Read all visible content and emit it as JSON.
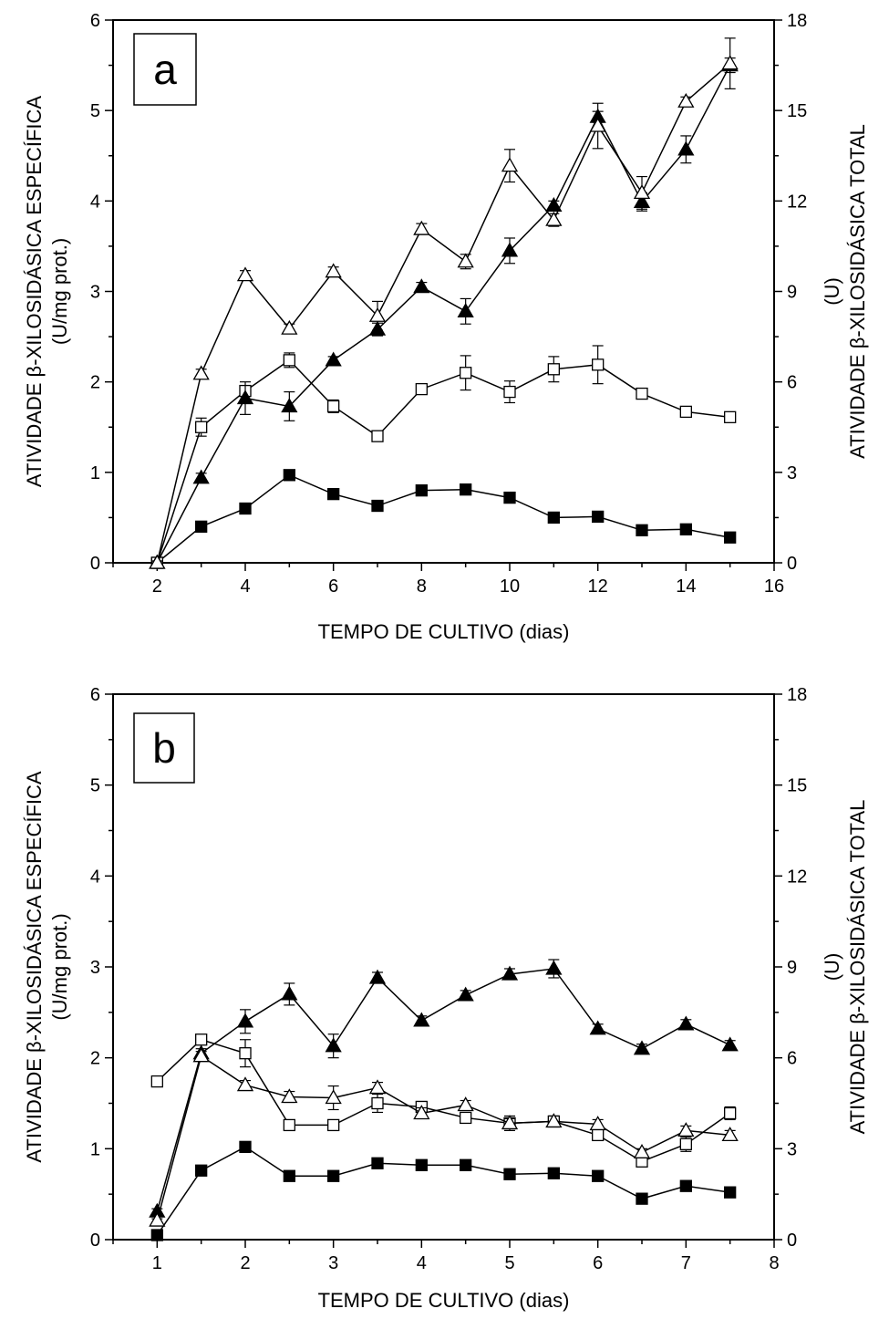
{
  "chart_data": [
    {
      "type": "line",
      "panel_label": "a",
      "xlabel": "TEMPO DE CULTIVO (dias)",
      "ylabel": [
        "ATIVIDADE β-XILOSIDÁSICA ESPECÍFICA",
        "(U/mg prot.)"
      ],
      "y2label": [
        "ATIVIDADE β-XILOSIDÁSICA TOTAL",
        "(U)"
      ],
      "xlim": [
        1,
        16
      ],
      "ylim": [
        0,
        6
      ],
      "y2lim": [
        0,
        18
      ],
      "xticks": [
        2,
        4,
        6,
        8,
        10,
        12,
        14,
        16
      ],
      "yticks": [
        0,
        1,
        2,
        3,
        4,
        5,
        6
      ],
      "y2ticks": [
        0,
        3,
        6,
        9,
        12,
        15,
        18
      ],
      "x": [
        2,
        3,
        4,
        5,
        6,
        7,
        8,
        9,
        10,
        11,
        12,
        13,
        14,
        15
      ],
      "series": [
        {
          "marker": "filled-square",
          "values": [
            0,
            0.4,
            0.6,
            0.97,
            0.76,
            0.63,
            0.8,
            0.81,
            0.72,
            0.5,
            0.51,
            0.36,
            0.37,
            0.28
          ],
          "errors": [
            0.02,
            0.03,
            0.03,
            0.03,
            0.03,
            0.03,
            0.03,
            0.04,
            0.03,
            0.03,
            0.03,
            0.03,
            0.03,
            0.03
          ]
        },
        {
          "marker": "open-square",
          "values": [
            0,
            1.5,
            1.9,
            2.24,
            1.73,
            1.4,
            1.92,
            2.1,
            1.89,
            2.14,
            2.19,
            1.87,
            1.67,
            1.61
          ],
          "errors": [
            0.02,
            0.1,
            0.06,
            0.08,
            0.07,
            0.04,
            0.05,
            0.19,
            0.12,
            0.14,
            0.21,
            0.03,
            0.05,
            0.03
          ]
        },
        {
          "marker": "filled-triangle",
          "values": [
            0,
            0.94,
            1.82,
            1.73,
            2.24,
            2.58,
            3.05,
            2.78,
            3.45,
            3.95,
            4.93,
            3.99,
            4.57,
            5.5
          ],
          "errors": [
            0.02,
            0.05,
            0.18,
            0.16,
            0.04,
            0.07,
            0.05,
            0.14,
            0.14,
            0.05,
            0.06,
            0.1,
            0.15,
            0.08
          ]
        },
        {
          "marker": "open-triangle",
          "values": [
            0,
            2.09,
            3.18,
            2.59,
            3.22,
            2.73,
            3.69,
            3.33,
            4.39,
            3.79,
            4.83,
            4.09,
            5.1,
            5.52
          ],
          "errors": [
            0.02,
            0.05,
            0.05,
            0.05,
            0.05,
            0.16,
            0.06,
            0.08,
            0.18,
            0.07,
            0.25,
            0.18,
            0.05,
            0.28
          ]
        }
      ]
    },
    {
      "type": "line",
      "panel_label": "b",
      "xlabel": "TEMPO DE CULTIVO (dias)",
      "ylabel": [
        "ATIVIDADE β-XILOSIDÁSICA ESPECÍFICA",
        "(U/mg prot.)"
      ],
      "y2label": [
        "ATIVIDADE β-XILOSIDÁSICA TOTAL",
        "(U)"
      ],
      "xlim": [
        0.5,
        8
      ],
      "ylim": [
        0,
        6
      ],
      "y2lim": [
        0,
        18
      ],
      "xticks": [
        1,
        2,
        3,
        4,
        5,
        6,
        7,
        8
      ],
      "yticks": [
        0,
        1,
        2,
        3,
        4,
        5,
        6
      ],
      "y2ticks": [
        0,
        3,
        6,
        9,
        12,
        15,
        18
      ],
      "x": [
        1,
        1.5,
        2,
        2.5,
        3,
        3.5,
        4,
        4.5,
        5,
        5.5,
        6,
        6.5,
        7,
        7.5
      ],
      "series": [
        {
          "marker": "filled-square",
          "values": [
            0.05,
            0.76,
            1.02,
            0.7,
            0.7,
            0.84,
            0.82,
            0.82,
            0.72,
            0.73,
            0.7,
            0.45,
            0.59,
            0.52
          ],
          "errors": [
            0.02,
            0.03,
            0.03,
            0.03,
            0.03,
            0.03,
            0.03,
            0.03,
            0.03,
            0.03,
            0.03,
            0.03,
            0.03,
            0.03
          ]
        },
        {
          "marker": "open-square",
          "values": [
            1.74,
            2.2,
            2.05,
            1.26,
            1.26,
            1.5,
            1.46,
            1.34,
            1.28,
            1.3,
            1.15,
            0.86,
            1.05,
            1.39
          ],
          "errors": [
            0.04,
            0.04,
            0.15,
            0.04,
            0.04,
            0.1,
            0.06,
            0.04,
            0.08,
            0.04,
            0.05,
            0.05,
            0.08,
            0.07
          ]
        },
        {
          "marker": "filled-triangle",
          "values": [
            0.31,
            2.05,
            2.4,
            2.7,
            2.13,
            2.88,
            2.41,
            2.69,
            2.92,
            2.98,
            2.32,
            2.1,
            2.37,
            2.14
          ],
          "errors": [
            0.03,
            0.05,
            0.13,
            0.12,
            0.13,
            0.06,
            0.05,
            0.05,
            0.06,
            0.1,
            0.05,
            0.05,
            0.05,
            0.05
          ]
        },
        {
          "marker": "open-triangle",
          "values": [
            0.21,
            2.02,
            1.7,
            1.57,
            1.56,
            1.67,
            1.39,
            1.48,
            1.28,
            1.3,
            1.27,
            0.96,
            1.2,
            1.15
          ],
          "errors": [
            0.02,
            0.05,
            0.05,
            0.06,
            0.13,
            0.06,
            0.06,
            0.05,
            0.05,
            0.06,
            0.05,
            0.04,
            0.05,
            0.05
          ]
        }
      ]
    }
  ]
}
